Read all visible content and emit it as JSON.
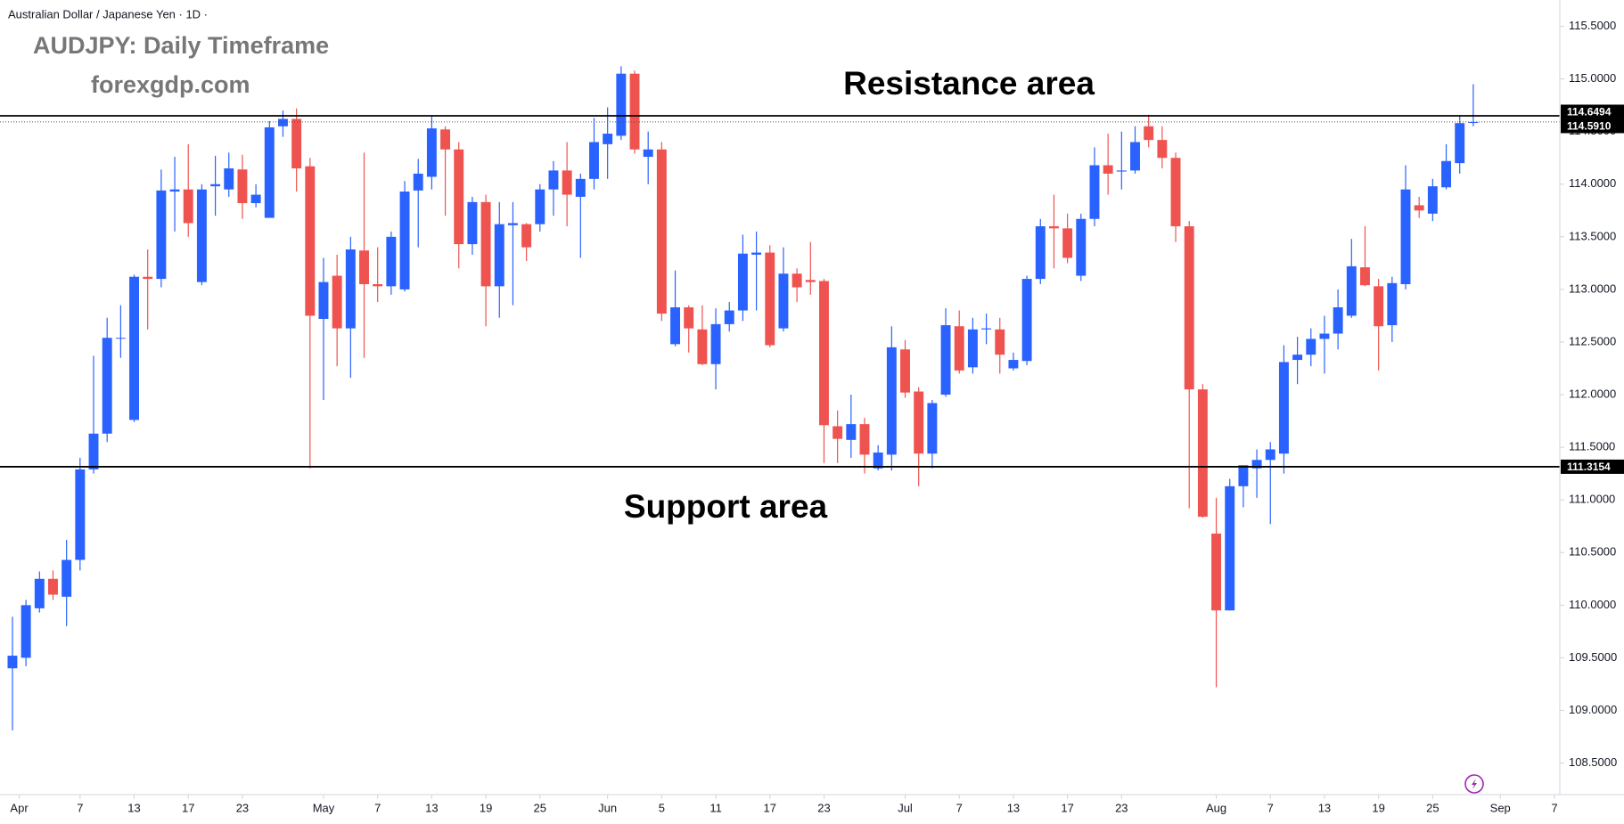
{
  "chart_data": {
    "type": "candlestick",
    "title": "Australian Dollar / Japanese Yen · 1D ·",
    "annotations": [
      "AUDJPY: Daily Timeframe",
      "forexgdp.com",
      "Resistance area",
      "Support area"
    ],
    "x": [
      0,
      1,
      2,
      3,
      4,
      5,
      6,
      7,
      8,
      9,
      10,
      11,
      12,
      13,
      14,
      15,
      16,
      17,
      18,
      19,
      20,
      21,
      22,
      23,
      24,
      25,
      26,
      27,
      28,
      29,
      30,
      31,
      32,
      33,
      34,
      35,
      36,
      37,
      38,
      39,
      40,
      41,
      42,
      43,
      44,
      45,
      46,
      47,
      48,
      49,
      50,
      51,
      52,
      53,
      54,
      55,
      56,
      57,
      58,
      59,
      60,
      61,
      62,
      63,
      64,
      65,
      66,
      67,
      68,
      69,
      70,
      71,
      72,
      73,
      74,
      75,
      76,
      77,
      78,
      79,
      80,
      81,
      82,
      83,
      84,
      85,
      86,
      87,
      88,
      89,
      90,
      91,
      92,
      93,
      94,
      95,
      96,
      97,
      98,
      99,
      100,
      101,
      102,
      103,
      104,
      105,
      106,
      107,
      108
    ],
    "series": {
      "up_color": "#2962ff",
      "down_color": "#ef5350",
      "open": [
        109.4,
        109.5,
        109.97,
        110.25,
        110.08,
        110.43,
        111.29,
        111.63,
        112.54,
        111.76,
        113.12,
        113.1,
        113.93,
        113.95,
        113.07,
        113.98,
        113.95,
        114.14,
        113.82,
        113.68,
        114.55,
        114.62,
        114.17,
        112.72,
        113.13,
        112.63,
        113.37,
        113.05,
        113.03,
        113.0,
        113.94,
        114.07,
        114.52,
        114.33,
        113.43,
        113.83,
        113.03,
        113.61,
        113.62,
        113.62,
        113.95,
        114.13,
        113.88,
        114.05,
        114.38,
        114.46,
        115.05,
        114.26,
        114.33,
        112.48,
        112.83,
        112.62,
        112.29,
        112.67,
        112.8,
        113.33,
        113.35,
        112.63,
        113.15,
        113.09,
        113.08,
        111.7,
        111.57,
        111.72,
        111.3,
        111.43,
        112.43,
        112.03,
        111.44,
        112.0,
        112.65,
        112.26,
        112.62,
        112.62,
        112.25,
        112.32,
        113.1,
        113.6,
        113.58,
        113.13,
        113.67,
        114.18,
        114.12,
        114.13,
        114.55,
        114.42,
        114.25,
        113.6,
        112.05,
        110.68,
        109.95,
        111.13,
        111.3,
        111.38,
        111.44,
        112.33,
        112.38,
        112.53,
        112.58,
        112.75,
        113.21,
        113.03,
        112.66,
        113.05,
        113.8,
        113.72,
        113.97,
        114.2,
        114.59
      ],
      "high": [
        109.89,
        110.05,
        110.32,
        110.33,
        110.62,
        111.4,
        112.37,
        112.73,
        112.85,
        113.14,
        113.38,
        114.14,
        114.26,
        114.38,
        114.0,
        114.27,
        114.3,
        114.28,
        114.0,
        114.6,
        114.7,
        114.72,
        114.25,
        113.3,
        113.33,
        113.5,
        114.3,
        113.4,
        113.55,
        114.03,
        114.24,
        114.65,
        114.55,
        114.4,
        113.88,
        113.9,
        113.83,
        113.83,
        113.63,
        114.0,
        114.22,
        114.4,
        114.1,
        114.63,
        114.73,
        115.12,
        115.08,
        114.5,
        114.4,
        113.18,
        112.85,
        112.85,
        112.82,
        112.88,
        113.52,
        113.55,
        113.42,
        113.4,
        113.2,
        113.45,
        113.1,
        111.85,
        112.0,
        111.78,
        111.52,
        112.65,
        112.52,
        112.07,
        111.95,
        112.82,
        112.8,
        112.73,
        112.77,
        112.73,
        112.4,
        113.13,
        113.67,
        113.9,
        113.72,
        113.72,
        114.35,
        114.48,
        114.5,
        114.55,
        114.66,
        114.55,
        114.3,
        113.65,
        112.1,
        111.02,
        111.2,
        111.33,
        111.48,
        111.55,
        112.47,
        112.55,
        112.63,
        112.75,
        113.0,
        113.48,
        113.6,
        113.1,
        113.12,
        114.18,
        113.88,
        114.05,
        114.38,
        114.65,
        114.95
      ],
      "low": [
        108.81,
        109.42,
        109.93,
        110.05,
        109.8,
        110.33,
        111.25,
        111.55,
        112.35,
        111.74,
        112.62,
        113.02,
        113.55,
        113.5,
        113.04,
        113.7,
        113.88,
        113.67,
        113.78,
        113.68,
        114.45,
        113.93,
        111.3,
        111.95,
        112.27,
        112.16,
        112.35,
        112.88,
        112.95,
        112.98,
        113.4,
        113.95,
        113.7,
        113.2,
        113.33,
        112.65,
        112.73,
        112.85,
        113.27,
        113.55,
        113.7,
        113.6,
        113.3,
        113.95,
        114.05,
        114.42,
        114.29,
        114.0,
        112.7,
        112.46,
        112.4,
        112.28,
        112.05,
        112.6,
        112.7,
        112.8,
        112.45,
        112.6,
        112.88,
        112.95,
        111.35,
        111.35,
        111.4,
        111.25,
        111.28,
        111.28,
        111.97,
        111.13,
        111.3,
        111.98,
        112.2,
        112.2,
        112.48,
        112.2,
        112.23,
        112.28,
        113.05,
        113.2,
        113.25,
        113.08,
        113.6,
        113.9,
        113.95,
        114.1,
        114.35,
        114.15,
        113.45,
        110.92,
        110.83,
        109.22,
        109.95,
        110.93,
        111.02,
        110.77,
        111.25,
        112.1,
        112.27,
        112.2,
        112.43,
        112.73,
        113.03,
        112.23,
        112.5,
        113.0,
        113.68,
        113.65,
        113.95,
        114.1,
        114.55
      ],
      "close": [
        109.52,
        110.0,
        110.25,
        110.1,
        110.43,
        111.29,
        111.63,
        112.54,
        112.54,
        113.12,
        113.1,
        113.94,
        113.95,
        113.63,
        113.95,
        114.0,
        114.15,
        113.82,
        113.9,
        114.54,
        114.62,
        114.15,
        112.75,
        113.07,
        112.63,
        113.38,
        113.05,
        113.03,
        113.5,
        113.93,
        114.1,
        114.53,
        114.33,
        113.43,
        113.83,
        113.03,
        113.62,
        113.63,
        113.4,
        113.95,
        114.13,
        113.9,
        114.05,
        114.4,
        114.48,
        115.05,
        114.33,
        114.33,
        112.77,
        112.83,
        112.63,
        112.29,
        112.67,
        112.8,
        113.34,
        113.35,
        112.47,
        113.15,
        113.02,
        113.07,
        111.71,
        111.58,
        111.72,
        111.43,
        111.45,
        112.45,
        112.02,
        111.44,
        111.92,
        112.66,
        112.23,
        112.62,
        112.63,
        112.38,
        112.33,
        113.1,
        113.6,
        113.58,
        113.3,
        113.67,
        114.18,
        114.1,
        114.13,
        114.4,
        114.42,
        114.25,
        113.6,
        112.05,
        110.84,
        109.95,
        111.13,
        111.33,
        111.38,
        111.48,
        112.31,
        112.38,
        112.53,
        112.58,
        112.83,
        113.22,
        113.04,
        112.65,
        113.06,
        113.95,
        113.75,
        113.98,
        114.22,
        114.58,
        114.59
      ]
    },
    "xlim": [
      -0.92,
      114.4
    ],
    "xticks": [
      {
        "value": 0.5,
        "label": "Apr"
      },
      {
        "value": 5,
        "label": "7"
      },
      {
        "value": 9,
        "label": "13"
      },
      {
        "value": 13,
        "label": "17"
      },
      {
        "value": 17,
        "label": "23"
      },
      {
        "value": 23,
        "label": "May"
      },
      {
        "value": 27,
        "label": "7"
      },
      {
        "value": 31,
        "label": "13"
      },
      {
        "value": 35,
        "label": "19"
      },
      {
        "value": 39,
        "label": "25"
      },
      {
        "value": 44,
        "label": "Jun"
      },
      {
        "value": 48,
        "label": "5"
      },
      {
        "value": 52,
        "label": "11"
      },
      {
        "value": 56,
        "label": "17"
      },
      {
        "value": 60,
        "label": "23"
      },
      {
        "value": 66,
        "label": "Jul"
      },
      {
        "value": 70,
        "label": "7"
      },
      {
        "value": 74,
        "label": "13"
      },
      {
        "value": 78,
        "label": "17"
      },
      {
        "value": 82,
        "label": "23"
      },
      {
        "value": 89,
        "label": "Aug"
      },
      {
        "value": 93,
        "label": "7"
      },
      {
        "value": 97,
        "label": "13"
      },
      {
        "value": 101,
        "label": "19"
      },
      {
        "value": 105,
        "label": "25"
      },
      {
        "value": 110,
        "label": "Sep"
      },
      {
        "value": 114,
        "label": "7"
      }
    ],
    "ylim": [
      108.2,
      115.75
    ],
    "yticks": [
      {
        "value": 108.5,
        "label": "108.5000"
      },
      {
        "value": 109,
        "label": "109.0000"
      },
      {
        "value": 109.5,
        "label": "109.5000"
      },
      {
        "value": 110,
        "label": "110.0000"
      },
      {
        "value": 110.5,
        "label": "110.5000"
      },
      {
        "value": 111,
        "label": "111.0000"
      },
      {
        "value": 111.5,
        "label": "111.5000"
      },
      {
        "value": 112,
        "label": "112.0000"
      },
      {
        "value": 112.5,
        "label": "112.5000"
      },
      {
        "value": 113,
        "label": "113.0000"
      },
      {
        "value": 113.5,
        "label": "113.5000"
      },
      {
        "value": 114,
        "label": "114.0000"
      },
      {
        "value": 114.5,
        "label": "114.5000"
      },
      {
        "value": 115,
        "label": "115.0000"
      },
      {
        "value": 115.5,
        "label": "115.5000"
      }
    ],
    "levels": [
      {
        "value": 114.6494,
        "label": "114.6494",
        "style": "solid",
        "color": "#000000"
      },
      {
        "value": 114.591,
        "label": "114.5910",
        "style": "dotted",
        "color": "#555555"
      },
      {
        "value": 111.3154,
        "label": "111.3154",
        "style": "solid",
        "color": "#000000"
      }
    ],
    "grid": false
  }
}
